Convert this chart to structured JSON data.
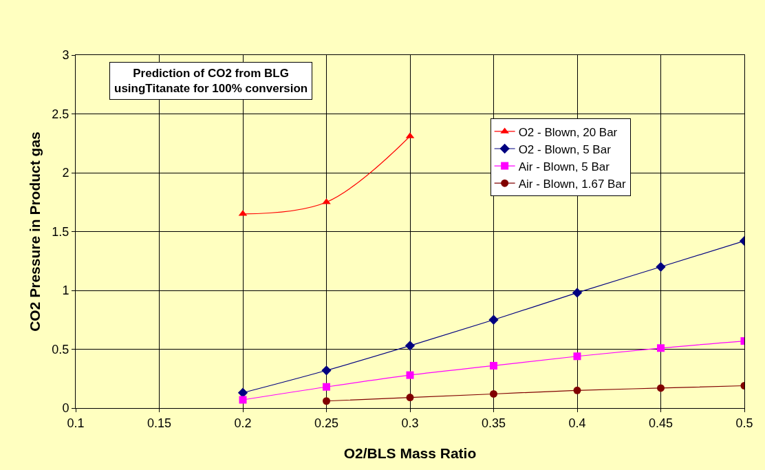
{
  "chart_data": {
    "type": "line",
    "xlabel": "O2/BLS Mass Ratio",
    "ylabel": "CO2 Pressure in Product gas",
    "annotations": [
      "Prediction of CO2 from BLG usingTitanate for 100% conversion"
    ],
    "xlim": [
      0.1,
      0.5
    ],
    "xticks": [
      0.1,
      0.15,
      0.2,
      0.25,
      0.3,
      0.35,
      0.4,
      0.45,
      0.5
    ],
    "ylim": [
      0,
      3
    ],
    "yticks": [
      0,
      0.5,
      1,
      1.5,
      2,
      2.5,
      3
    ],
    "grid": true,
    "legend": "top right",
    "series": [
      {
        "name": "O2 - Blown, 20 Bar",
        "color": "#ff0000",
        "marker": "triangle",
        "x": [
          0.2,
          0.25,
          0.3
        ],
        "values": [
          1.65,
          1.75,
          2.31
        ]
      },
      {
        "name": "O2 - Blown, 5 Bar",
        "color": "#000080",
        "marker": "diamond",
        "x": [
          0.2,
          0.25,
          0.3,
          0.35,
          0.4,
          0.45,
          0.5
        ],
        "values": [
          0.13,
          0.32,
          0.53,
          0.75,
          0.98,
          1.2,
          1.42
        ]
      },
      {
        "name": "Air - Blown, 5 Bar",
        "color": "#ff00ff",
        "marker": "square",
        "x": [
          0.2,
          0.25,
          0.3,
          0.35,
          0.4,
          0.45,
          0.5
        ],
        "values": [
          0.07,
          0.18,
          0.28,
          0.36,
          0.44,
          0.51,
          0.57
        ]
      },
      {
        "name": "Air - Blown, 1.67 Bar",
        "color": "#800000",
        "marker": "circle",
        "x": [
          0.25,
          0.3,
          0.35,
          0.4,
          0.45,
          0.5
        ],
        "values": [
          0.06,
          0.09,
          0.12,
          0.15,
          0.17,
          0.19
        ]
      }
    ]
  }
}
